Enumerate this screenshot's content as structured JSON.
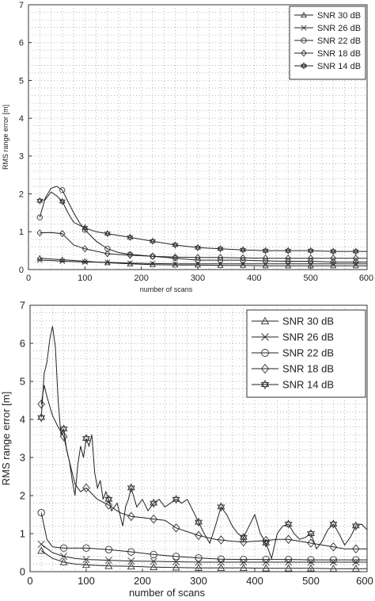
{
  "chart_data": [
    {
      "type": "line",
      "xlabel": "number of scans",
      "ylabel": "RMS range error [m]",
      "xlim": [
        0,
        600
      ],
      "ylim": [
        0,
        7
      ],
      "xticks": [
        0,
        100,
        200,
        300,
        400,
        500,
        600
      ],
      "yticks": [
        0,
        1,
        2,
        3,
        4,
        5,
        6,
        7
      ],
      "grid": true,
      "legend_position": "top-right",
      "series": [
        {
          "name": "SNR 30 dB",
          "marker": "triangle",
          "x": [
            20,
            40,
            60,
            80,
            100,
            140,
            180,
            220,
            260,
            300,
            340,
            380,
            420,
            460,
            500,
            540,
            580,
            600
          ],
          "y": [
            0.3,
            0.28,
            0.26,
            0.24,
            0.22,
            0.18,
            0.15,
            0.13,
            0.12,
            0.12,
            0.11,
            0.11,
            0.1,
            0.1,
            0.1,
            0.1,
            0.1,
            0.1
          ]
        },
        {
          "name": "SNR 26 dB",
          "marker": "x",
          "x": [
            20,
            40,
            60,
            80,
            100,
            140,
            180,
            220,
            260,
            300,
            340,
            380,
            420,
            460,
            500,
            540,
            580,
            600
          ],
          "y": [
            0.25,
            0.24,
            0.22,
            0.21,
            0.2,
            0.19,
            0.17,
            0.16,
            0.15,
            0.15,
            0.15,
            0.15,
            0.15,
            0.15,
            0.15,
            0.15,
            0.15,
            0.15
          ]
        },
        {
          "name": "SNR 22 dB",
          "marker": "circle",
          "x": [
            20,
            30,
            40,
            50,
            60,
            70,
            80,
            90,
            100,
            120,
            140,
            160,
            180,
            220,
            260,
            300,
            340,
            380,
            420,
            460,
            500,
            540,
            580,
            600
          ],
          "y": [
            1.38,
            1.9,
            2.15,
            2.2,
            2.1,
            1.8,
            1.5,
            1.25,
            1.05,
            0.75,
            0.55,
            0.45,
            0.4,
            0.35,
            0.3,
            0.25,
            0.25,
            0.25,
            0.23,
            0.22,
            0.22,
            0.2,
            0.2,
            0.2
          ]
        },
        {
          "name": "SNR 18 dB",
          "marker": "diamond",
          "x": [
            20,
            40,
            60,
            70,
            80,
            100,
            140,
            180,
            220,
            260,
            300,
            340,
            380,
            420,
            460,
            500,
            540,
            580,
            600
          ],
          "y": [
            0.97,
            0.98,
            0.95,
            0.8,
            0.65,
            0.55,
            0.42,
            0.38,
            0.35,
            0.33,
            0.32,
            0.32,
            0.31,
            0.3,
            0.3,
            0.3,
            0.3,
            0.3,
            0.3
          ]
        },
        {
          "name": "SNR 14 dB",
          "marker": "star",
          "x": [
            20,
            30,
            40,
            50,
            60,
            70,
            80,
            100,
            120,
            140,
            180,
            220,
            260,
            300,
            340,
            380,
            420,
            460,
            500,
            540,
            580,
            600
          ],
          "y": [
            1.82,
            1.85,
            2.05,
            1.95,
            1.8,
            1.5,
            1.25,
            1.1,
            1.0,
            0.95,
            0.85,
            0.75,
            0.65,
            0.58,
            0.55,
            0.52,
            0.5,
            0.5,
            0.5,
            0.48,
            0.48,
            0.48
          ]
        }
      ]
    },
    {
      "type": "line",
      "xlabel": "number of scans",
      "ylabel": "RMS range error [m]",
      "xlim": [
        0,
        600
      ],
      "ylim": [
        0,
        7
      ],
      "xticks": [
        0,
        100,
        200,
        300,
        400,
        500,
        600
      ],
      "yticks": [
        0,
        1,
        2,
        3,
        4,
        5,
        6,
        7
      ],
      "grid": true,
      "legend_position": "top-right",
      "series": [
        {
          "name": "SNR 30 dB",
          "marker": "triangle",
          "x": [
            20,
            40,
            60,
            80,
            100,
            140,
            180,
            220,
            260,
            300,
            340,
            380,
            420,
            460,
            500,
            540,
            580,
            600
          ],
          "y": [
            0.55,
            0.35,
            0.25,
            0.2,
            0.18,
            0.15,
            0.14,
            0.12,
            0.11,
            0.1,
            0.1,
            0.1,
            0.09,
            0.09,
            0.09,
            0.08,
            0.08,
            0.08
          ]
        },
        {
          "name": "SNR 26 dB",
          "marker": "x",
          "x": [
            20,
            40,
            60,
            80,
            100,
            140,
            180,
            220,
            260,
            300,
            340,
            380,
            420,
            460,
            500,
            540,
            580,
            600
          ],
          "y": [
            0.72,
            0.5,
            0.4,
            0.35,
            0.32,
            0.3,
            0.28,
            0.27,
            0.26,
            0.25,
            0.25,
            0.25,
            0.25,
            0.25,
            0.25,
            0.25,
            0.25,
            0.25
          ]
        },
        {
          "name": "SNR 22 dB",
          "marker": "circle",
          "x": [
            20,
            30,
            40,
            60,
            80,
            100,
            140,
            180,
            220,
            260,
            300,
            340,
            380,
            420,
            460,
            500,
            540,
            580,
            600
          ],
          "y": [
            1.55,
            0.85,
            0.65,
            0.62,
            0.62,
            0.62,
            0.58,
            0.52,
            0.45,
            0.4,
            0.36,
            0.33,
            0.32,
            0.32,
            0.32,
            0.31,
            0.31,
            0.31,
            0.31
          ]
        },
        {
          "name": "SNR 18 dB",
          "marker": "diamond",
          "x": [
            20,
            25,
            30,
            40,
            50,
            60,
            70,
            80,
            90,
            100,
            110,
            120,
            140,
            160,
            180,
            200,
            220,
            240,
            260,
            280,
            300,
            330,
            360,
            380,
            400,
            420,
            440,
            460,
            480,
            500,
            520,
            540,
            560,
            580,
            600
          ],
          "y": [
            4.4,
            4.9,
            4.6,
            4.1,
            3.8,
            3.55,
            2.9,
            2.3,
            2.1,
            2.2,
            2.05,
            1.9,
            1.75,
            1.55,
            1.45,
            1.42,
            1.38,
            1.35,
            1.15,
            1.05,
            0.95,
            0.85,
            0.8,
            0.78,
            0.8,
            0.82,
            0.85,
            0.85,
            0.8,
            0.75,
            0.7,
            0.65,
            0.6,
            0.6,
            0.6
          ]
        },
        {
          "name": "SNR 14 dB",
          "marker": "star",
          "x": [
            20,
            25,
            30,
            35,
            40,
            45,
            50,
            55,
            60,
            65,
            70,
            75,
            80,
            85,
            90,
            95,
            100,
            105,
            110,
            115,
            120,
            125,
            130,
            135,
            140,
            145,
            150,
            155,
            160,
            165,
            170,
            175,
            180,
            190,
            200,
            210,
            220,
            230,
            240,
            250,
            260,
            270,
            280,
            290,
            300,
            310,
            320,
            330,
            340,
            350,
            360,
            370,
            380,
            390,
            400,
            410,
            420,
            430,
            440,
            450,
            460,
            470,
            480,
            490,
            500,
            510,
            520,
            530,
            540,
            550,
            560,
            570,
            580,
            590,
            600
          ],
          "y": [
            4.05,
            5.2,
            5.5,
            6.1,
            6.45,
            5.9,
            4.5,
            3.6,
            3.75,
            3.2,
            2.9,
            2.4,
            2.0,
            2.8,
            3.3,
            3.0,
            3.5,
            3.3,
            3.6,
            2.6,
            2.2,
            2.4,
            1.9,
            2.1,
            1.9,
            1.6,
            1.7,
            1.8,
            1.5,
            1.2,
            1.7,
            1.9,
            2.2,
            1.7,
            1.9,
            1.6,
            1.8,
            1.9,
            1.7,
            1.8,
            1.9,
            1.8,
            1.9,
            1.6,
            1.3,
            1.0,
            0.75,
            1.2,
            1.7,
            1.5,
            1.2,
            1.0,
            0.9,
            1.2,
            1.5,
            1.0,
            0.75,
            0.35,
            1.0,
            1.2,
            1.25,
            1.0,
            0.85,
            0.9,
            1.0,
            0.6,
            0.8,
            1.1,
            1.25,
            1.0,
            0.7,
            0.9,
            1.2,
            1.25,
            1.1
          ]
        }
      ]
    }
  ]
}
